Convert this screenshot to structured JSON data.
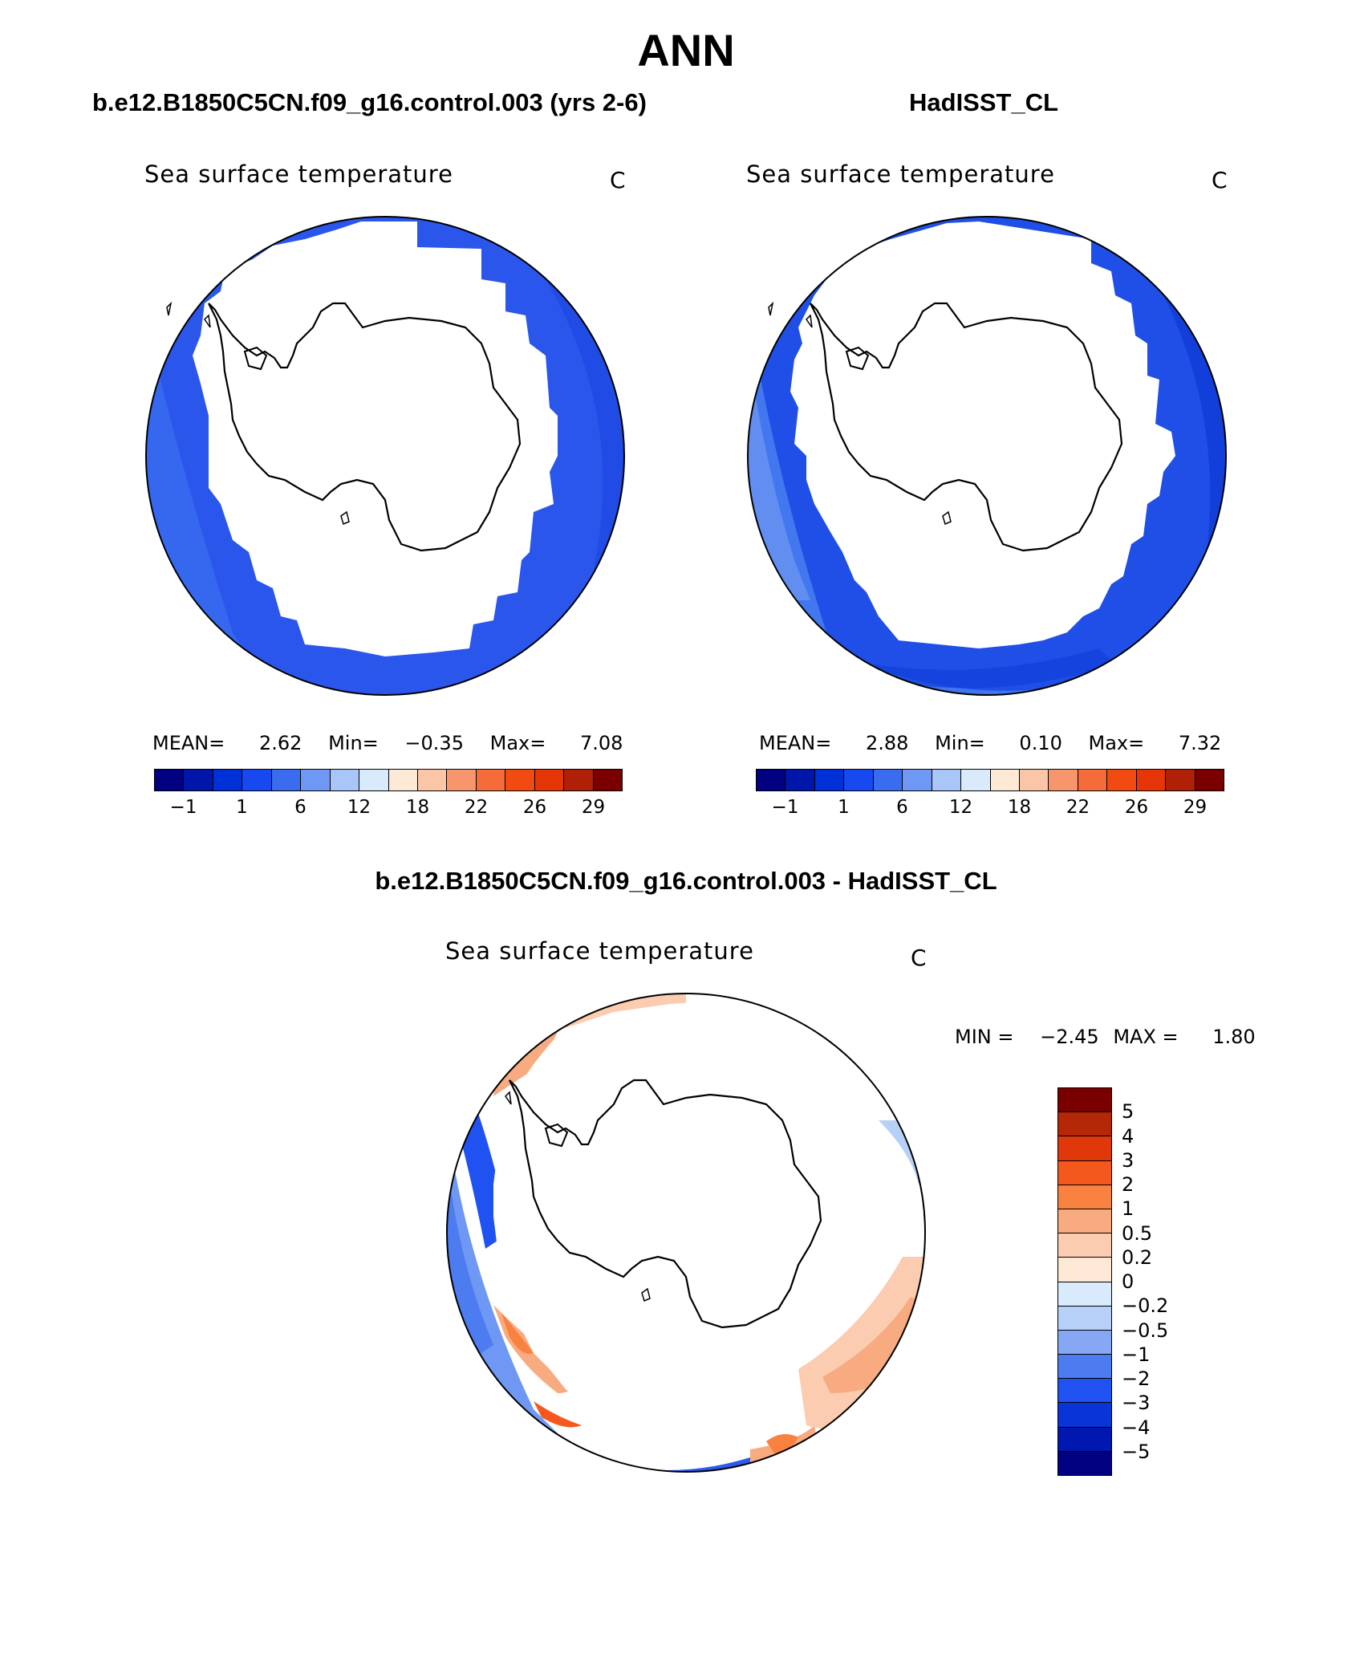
{
  "title": "ANN",
  "colors": {
    "abs": [
      "#000080",
      "#0016a8",
      "#0030d8",
      "#1848f0",
      "#3a6cf0",
      "#6f98f4",
      "#a9c6f8",
      "#d8eafc",
      "#fde9d6",
      "#fbc6a8",
      "#f7966c",
      "#f56b3a",
      "#f24b12",
      "#e63608",
      "#b02006",
      "#7a0000"
    ],
    "diff": [
      "#7a0000",
      "#b42808",
      "#e0380a",
      "#f4581c",
      "#f98240",
      "#f8aa80",
      "#fbccb0",
      "#fde9d6",
      "#d8eafc",
      "#b6d0f8",
      "#86a8f4",
      "#4d7cf0",
      "#1f52f0",
      "#0834d8",
      "#0018b0",
      "#000080"
    ],
    "ocean_model": "#2550ea",
    "ocean_obs": "#1f4fe6"
  },
  "panels": [
    {
      "title": "b.e12.B1850C5CN.f09_g16.control.003 (yrs 2-6)",
      "plot_label": "Sea surface temperature",
      "units": "C",
      "stats": {
        "mean_label": "MEAN=",
        "mean": "2.62",
        "min_label": "Min=",
        "min": "−0.35",
        "max_label": "Max=",
        "max": "7.08"
      },
      "colorbar_ticks": [
        "−1",
        "1",
        "6",
        "12",
        "18",
        "22",
        "26",
        "29"
      ]
    },
    {
      "title": "HadISST_CL",
      "plot_label": "Sea surface temperature",
      "units": "C",
      "stats": {
        "mean_label": "MEAN=",
        "mean": "2.88",
        "min_label": "Min=",
        "min": "0.10",
        "max_label": "Max=",
        "max": "7.32"
      },
      "colorbar_ticks": [
        "−1",
        "1",
        "6",
        "12",
        "18",
        "22",
        "26",
        "29"
      ]
    }
  ],
  "diff": {
    "title": "b.e12.B1850C5CN.f09_g16.control.003 - HadISST_CL",
    "plot_label": "Sea surface temperature",
    "units": "C",
    "stats": {
      "min_label": "MIN =",
      "min": "−2.45",
      "max_label": "MAX =",
      "max": "1.80"
    },
    "colorbar_labels": [
      "5",
      "4",
      "3",
      "2",
      "1",
      "0.5",
      "0.2",
      "0",
      "−0.2",
      "−0.5",
      "−1",
      "−2",
      "−3",
      "−4",
      "−5"
    ]
  }
}
